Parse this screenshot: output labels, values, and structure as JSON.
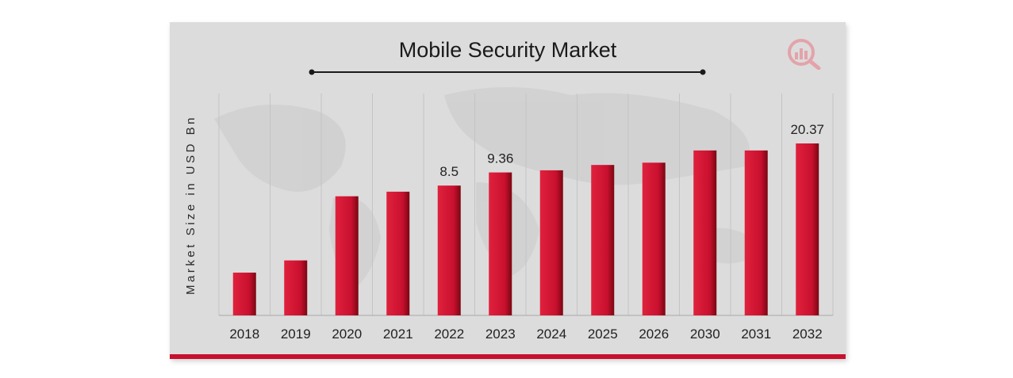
{
  "chart_data": {
    "type": "bar",
    "title": "Mobile Security Market",
    "ylabel": "Market Size in USD Bn",
    "xlabel": "",
    "categories": [
      "2018",
      "2019",
      "2020",
      "2021",
      "2022",
      "2023",
      "2024",
      "2025",
      "2026",
      "2030",
      "2031",
      "2032"
    ],
    "values": [
      2.8,
      3.6,
      7.8,
      8.1,
      8.5,
      9.36,
      9.5,
      9.85,
      10.0,
      10.8,
      10.8,
      20.37
    ],
    "data_labels": {
      "4": "8.5",
      "5": "9.36",
      "11": "20.37"
    },
    "bar_color": "#c8102e",
    "legend": "none",
    "grid": "vertical"
  },
  "colors": {
    "bar": "#c8102e",
    "bar_dark": "#7a0612",
    "background": "#dcdcdc",
    "accent_bar": "#c8102e"
  },
  "logo_icon": "magnifier-chart-icon"
}
